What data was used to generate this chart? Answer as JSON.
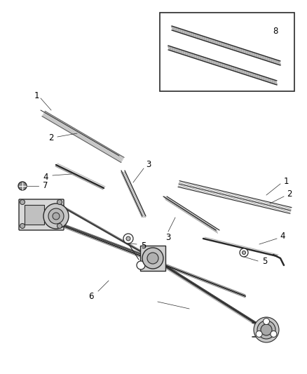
{
  "bg_color": "#ffffff",
  "fig_width": 4.38,
  "fig_height": 5.33,
  "dpi": 100
}
